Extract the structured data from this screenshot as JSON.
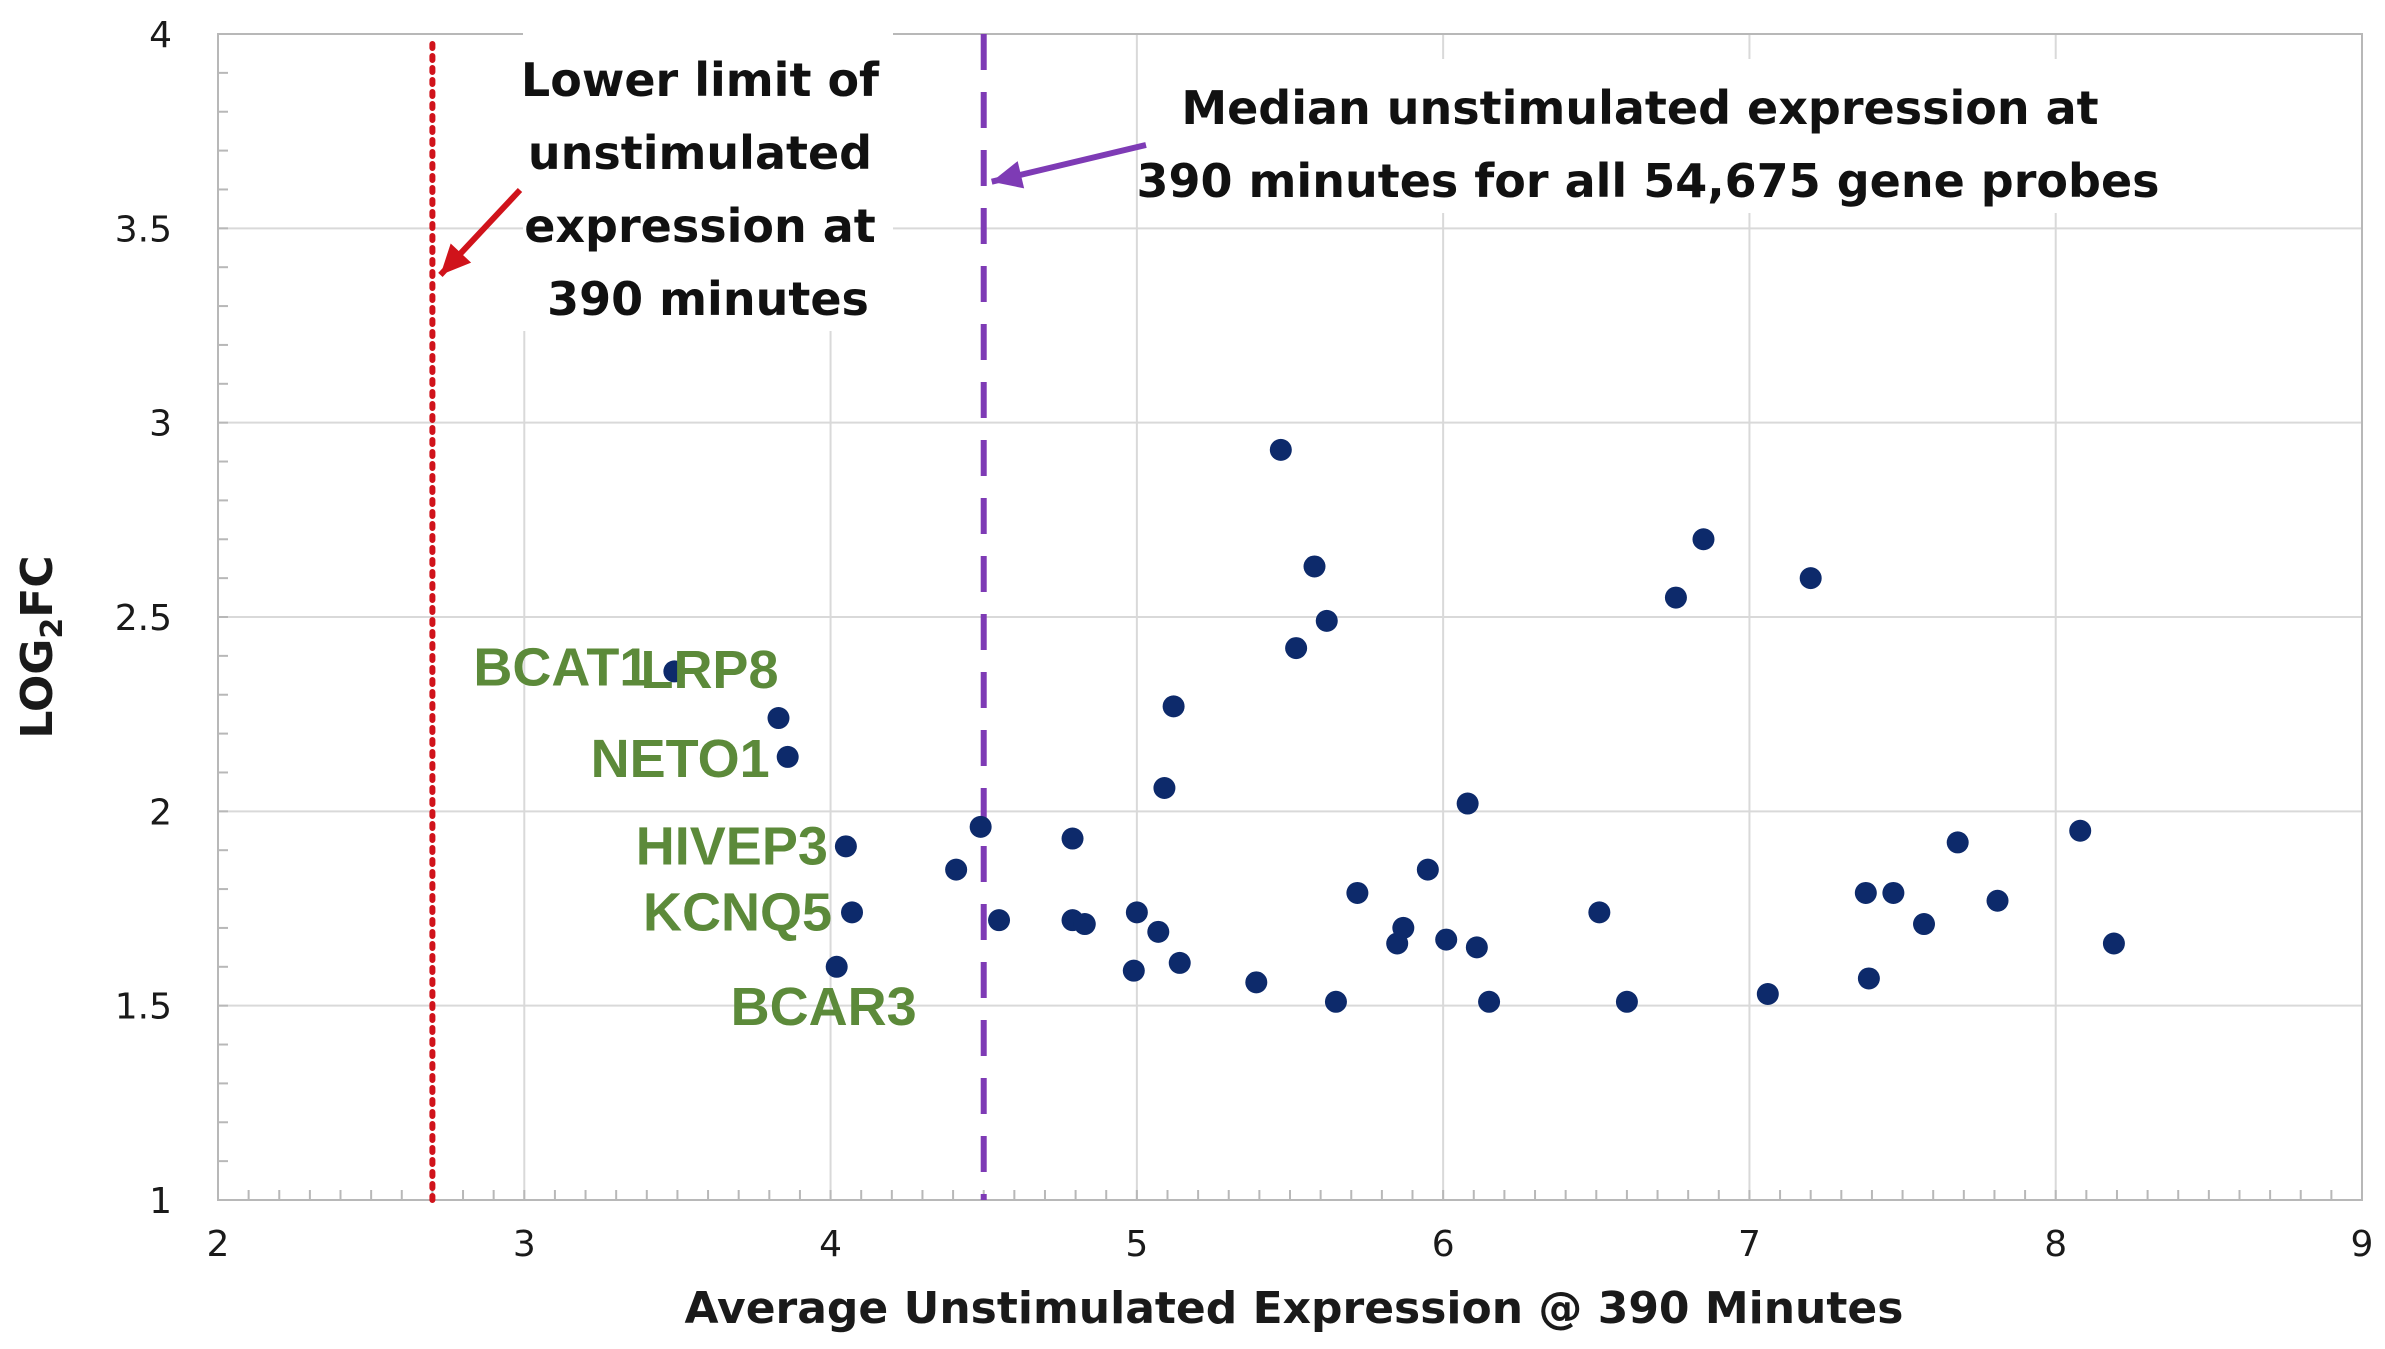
{
  "colors": {
    "point": "#0d2a6b",
    "gene_label": "#5c8a3a",
    "lower_limit_line": "#d0131b",
    "median_line": "#7e3bb5",
    "grid": "#d9d9d9",
    "axis": "#b8b8b8"
  },
  "chart_data": {
    "type": "scatter",
    "xlabel": "Average Unstimulated Expression @ 390 Minutes",
    "ylabel_main": "LOG",
    "ylabel_sub": "2",
    "ylabel_end": "FC",
    "xlim": [
      2,
      9
    ],
    "ylim": [
      1,
      4
    ],
    "x_ticks": [
      2,
      3,
      4,
      5,
      6,
      7,
      8,
      9
    ],
    "y_ticks": [
      1,
      1.5,
      2,
      2.5,
      3,
      3.5,
      4
    ],
    "x_tick_labels": [
      "2",
      "3",
      "4",
      "5",
      "6",
      "7",
      "8",
      "9"
    ],
    "y_tick_labels": [
      "1",
      "1.5",
      "2",
      "2.5",
      "3",
      "3.5",
      "4"
    ],
    "grid": true,
    "reference_lines": [
      {
        "name": "lower-limit",
        "x": 2.7,
        "style": "dotted",
        "color": "#d0131b",
        "annotation": [
          "Lower limit of",
          "unstimulated",
          "expression at",
          "390 minutes"
        ],
        "arrow_to_y": 3.38
      },
      {
        "name": "median",
        "x": 4.5,
        "style": "dashed",
        "color": "#7e3bb5",
        "annotation": [
          "Median unstimulated expression at",
          "390 minutes for all 54,675 gene probes"
        ],
        "arrow_to_y": 3.62
      }
    ],
    "gene_labels": [
      {
        "text": "BCAT1",
        "x": 3.5,
        "y": 2.37
      },
      {
        "text": "LRP8",
        "x": 3.83,
        "y": 2.24
      },
      {
        "text": "NETO1",
        "x": 3.86,
        "y": 2.14
      },
      {
        "text": "HIVEP3",
        "x": 4.05,
        "y": 1.91
      },
      {
        "text": "KCNQ5",
        "x": 4.07,
        "y": 1.74
      },
      {
        "text": "BCAR3",
        "x": 4.02,
        "y": 1.6
      }
    ],
    "points": [
      {
        "x": 3.49,
        "y": 2.36
      },
      {
        "x": 3.83,
        "y": 2.24
      },
      {
        "x": 3.86,
        "y": 2.14
      },
      {
        "x": 4.05,
        "y": 1.91
      },
      {
        "x": 4.07,
        "y": 1.74
      },
      {
        "x": 4.02,
        "y": 1.6
      },
      {
        "x": 4.41,
        "y": 1.85
      },
      {
        "x": 4.49,
        "y": 1.96
      },
      {
        "x": 4.55,
        "y": 1.72
      },
      {
        "x": 4.79,
        "y": 1.93
      },
      {
        "x": 4.79,
        "y": 1.72
      },
      {
        "x": 4.83,
        "y": 1.71
      },
      {
        "x": 5.0,
        "y": 1.74
      },
      {
        "x": 5.07,
        "y": 1.69
      },
      {
        "x": 4.99,
        "y": 1.59
      },
      {
        "x": 5.14,
        "y": 1.61
      },
      {
        "x": 5.09,
        "y": 2.06
      },
      {
        "x": 5.12,
        "y": 2.27
      },
      {
        "x": 5.39,
        "y": 1.56
      },
      {
        "x": 5.47,
        "y": 2.93
      },
      {
        "x": 5.52,
        "y": 2.42
      },
      {
        "x": 5.58,
        "y": 2.63
      },
      {
        "x": 5.62,
        "y": 2.49
      },
      {
        "x": 5.65,
        "y": 1.51
      },
      {
        "x": 5.72,
        "y": 1.79
      },
      {
        "x": 5.85,
        "y": 1.66
      },
      {
        "x": 5.87,
        "y": 1.7
      },
      {
        "x": 5.95,
        "y": 1.85
      },
      {
        "x": 6.01,
        "y": 1.67
      },
      {
        "x": 6.08,
        "y": 2.02
      },
      {
        "x": 6.11,
        "y": 1.65
      },
      {
        "x": 6.15,
        "y": 1.51
      },
      {
        "x": 6.51,
        "y": 1.74
      },
      {
        "x": 6.6,
        "y": 1.51
      },
      {
        "x": 6.76,
        "y": 2.55
      },
      {
        "x": 6.85,
        "y": 2.7
      },
      {
        "x": 7.06,
        "y": 1.53
      },
      {
        "x": 7.2,
        "y": 2.6
      },
      {
        "x": 7.38,
        "y": 1.79
      },
      {
        "x": 7.39,
        "y": 1.57
      },
      {
        "x": 7.47,
        "y": 1.79
      },
      {
        "x": 7.57,
        "y": 1.71
      },
      {
        "x": 7.68,
        "y": 1.92
      },
      {
        "x": 7.81,
        "y": 1.77
      },
      {
        "x": 8.08,
        "y": 1.95
      },
      {
        "x": 8.19,
        "y": 1.66
      }
    ]
  }
}
